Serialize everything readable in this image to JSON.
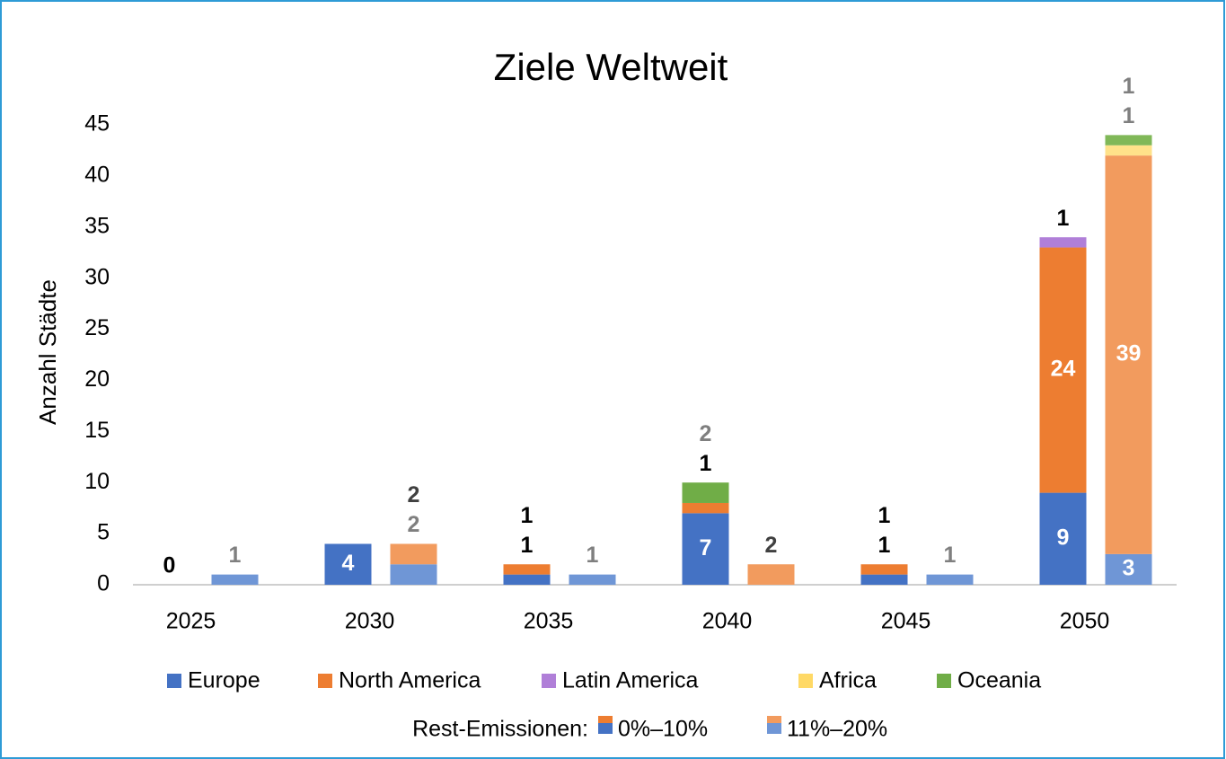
{
  "chart_data": {
    "type": "grouped_stacked_bar",
    "title": "Ziele Weltweit",
    "y_label": "Anzahl Städte",
    "categories": [
      "2025",
      "2030",
      "2035",
      "2040",
      "2045",
      "2050"
    ],
    "stacks_title": "Rest-Emissionen:",
    "stacks": [
      "0%–10%",
      "11%–20%"
    ],
    "series": [
      {
        "name": "Europe",
        "colors": [
          "#4472c4",
          "#6f96d6"
        ],
        "label_colors": [
          "#000000",
          "#7f7f7f"
        ],
        "values": [
          [
            0,
            4,
            1,
            7,
            1,
            9
          ],
          [
            1,
            2,
            1,
            null,
            1,
            3
          ]
        ]
      },
      {
        "name": "North America",
        "colors": [
          "#ed7d31",
          "#f29b5e"
        ],
        "label_colors": [
          "#000000",
          "#404040"
        ],
        "values": [
          [
            null,
            null,
            1,
            1,
            1,
            24
          ],
          [
            null,
            2,
            null,
            2,
            null,
            39
          ]
        ]
      },
      {
        "name": "Latin America",
        "colors": [
          "#b07fd8",
          "#c59ce2"
        ],
        "label_colors": [
          "#000000",
          "#404040"
        ],
        "values": [
          [
            null,
            null,
            null,
            null,
            null,
            1
          ],
          [
            null,
            null,
            null,
            null,
            null,
            null
          ]
        ]
      },
      {
        "name": "Africa",
        "colors": [
          "#ffd966",
          "#ffe28a"
        ],
        "label_colors": [
          "#7f7f7f",
          "#7f7f7f"
        ],
        "values": [
          [
            null,
            null,
            null,
            null,
            null,
            null
          ],
          [
            null,
            null,
            null,
            null,
            null,
            1
          ]
        ]
      },
      {
        "name": "Oceania",
        "colors": [
          "#70ad47",
          "#80b858"
        ],
        "label_colors": [
          "#7f7f7f",
          "#7f7f7f"
        ],
        "values": [
          [
            null,
            null,
            null,
            2,
            null,
            null
          ],
          [
            null,
            null,
            null,
            null,
            null,
            1
          ]
        ]
      }
    ],
    "ylim": [
      0,
      45
    ],
    "yticks": [
      0,
      5,
      10,
      15,
      20,
      25,
      30,
      35,
      40,
      45
    ],
    "grid": false
  }
}
